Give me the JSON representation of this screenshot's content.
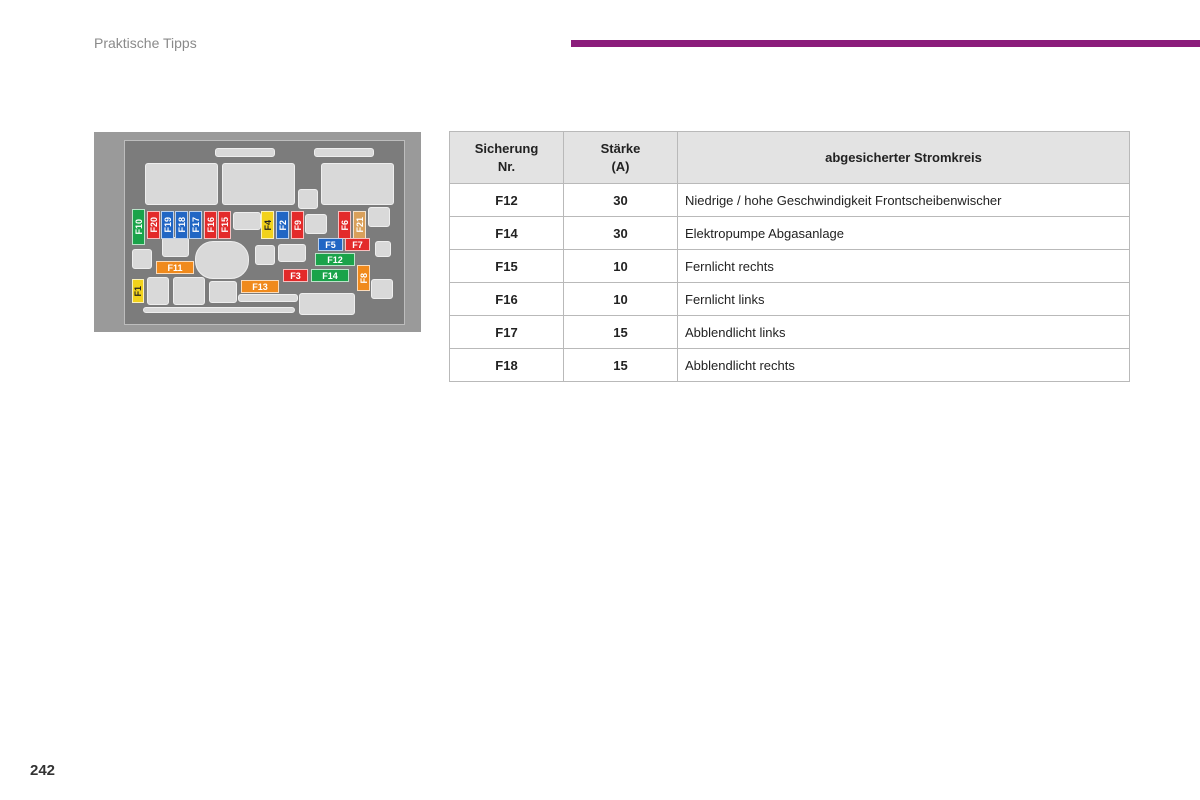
{
  "header": {
    "section_title": "Praktische Tipps",
    "accent_color": "#8b1d7b"
  },
  "page_number": "242",
  "diagram": {
    "fuses": [
      {
        "label": "F10",
        "color": "#1aa34a"
      },
      {
        "label": "F20",
        "color": "#e32a2a"
      },
      {
        "label": "F19",
        "color": "#2166c4"
      },
      {
        "label": "F18",
        "color": "#2166c4"
      },
      {
        "label": "F17",
        "color": "#2166c4"
      },
      {
        "label": "F16",
        "color": "#e32a2a"
      },
      {
        "label": "F15",
        "color": "#e32a2a"
      },
      {
        "label": "F4",
        "color": "#f2d21b"
      },
      {
        "label": "F2",
        "color": "#2166c4"
      },
      {
        "label": "F9",
        "color": "#e32a2a"
      },
      {
        "label": "F6",
        "color": "#e32a2a"
      },
      {
        "label": "F21",
        "color": "#d9a05b"
      },
      {
        "label": "F5",
        "color": "#2166c4"
      },
      {
        "label": "F7",
        "color": "#e32a2a"
      },
      {
        "label": "F12",
        "color": "#1aa34a"
      },
      {
        "label": "F11",
        "color": "#f08a1c"
      },
      {
        "label": "F3",
        "color": "#e32a2a"
      },
      {
        "label": "F14",
        "color": "#1aa34a"
      },
      {
        "label": "F8",
        "color": "#f08a1c"
      },
      {
        "label": "F1",
        "color": "#f2d21b"
      },
      {
        "label": "F13",
        "color": "#f08a1c"
      }
    ]
  },
  "table": {
    "headers": {
      "fuse_line1": "Sicherung",
      "fuse_line2": "Nr.",
      "rating_line1": "Stärke",
      "rating_line2": "(A)",
      "circuit": "abgesicherter Stromkreis"
    },
    "rows": [
      {
        "fuse": "F12",
        "rating": "30",
        "circuit": "Niedrige / hohe Geschwindigkeit Frontscheibenwischer"
      },
      {
        "fuse": "F14",
        "rating": "30",
        "circuit": "Elektropumpe Abgasanlage"
      },
      {
        "fuse": "F15",
        "rating": "10",
        "circuit": "Fernlicht rechts"
      },
      {
        "fuse": "F16",
        "rating": "10",
        "circuit": "Fernlicht links"
      },
      {
        "fuse": "F17",
        "rating": "15",
        "circuit": "Abblendlicht links"
      },
      {
        "fuse": "F18",
        "rating": "15",
        "circuit": "Abblendlicht rechts"
      }
    ]
  }
}
